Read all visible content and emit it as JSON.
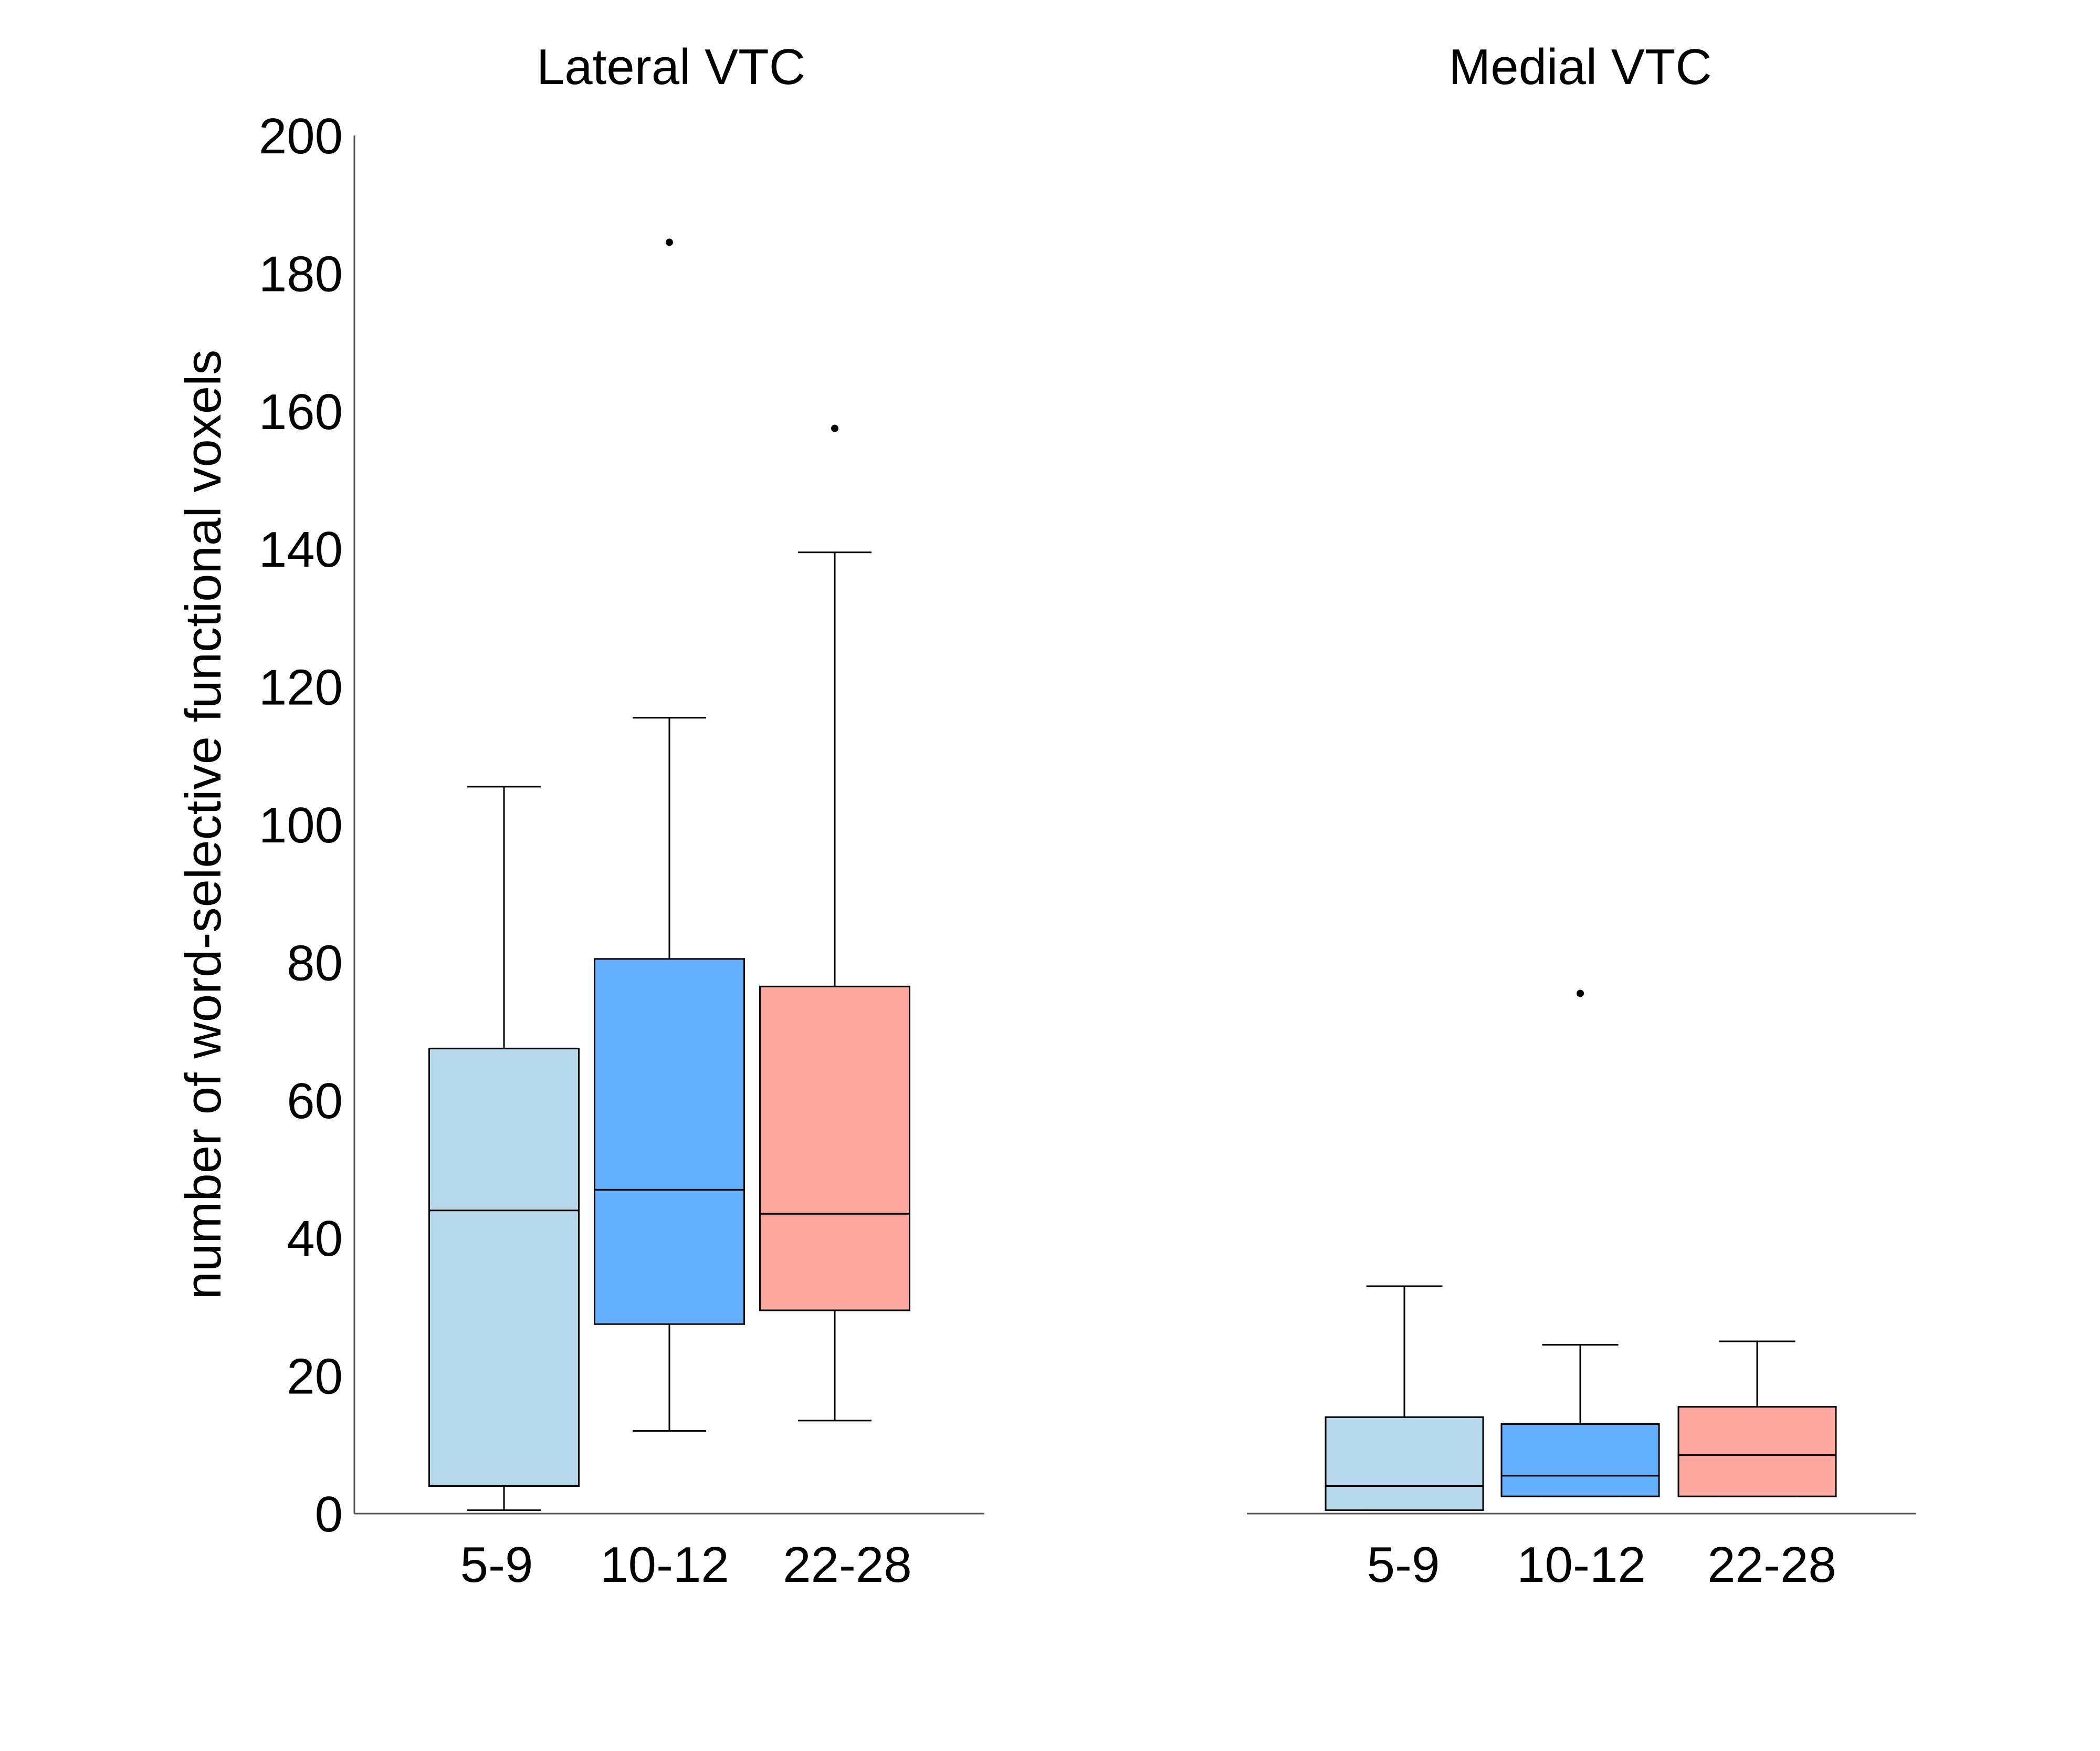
{
  "chart_data": [
    {
      "type": "box",
      "title": "Lateral VTC",
      "ylabel": "number of word-selective functional voxels",
      "xlabel": "",
      "ylim": [
        0,
        200
      ],
      "yticks": [
        0,
        20,
        40,
        60,
        80,
        100,
        120,
        140,
        160,
        180,
        200
      ],
      "y_axis_shown": true,
      "grid": false,
      "categories": [
        "5-9",
        "10-12",
        "22-28"
      ],
      "colors": [
        "#b4d8ea",
        "#63b1fe",
        "#fca89e"
      ],
      "boxes": [
        {
          "category": "5-9",
          "whisker_low": 0.5,
          "q1": 4,
          "median": 44,
          "q3": 67.5,
          "whisker_high": 105.5,
          "outliers": []
        },
        {
          "category": "10-12",
          "whisker_low": 12,
          "q1": 27.5,
          "median": 47,
          "q3": 80.5,
          "whisker_high": 115.5,
          "outliers": [
            184.5
          ]
        },
        {
          "category": "22-28",
          "whisker_low": 13.5,
          "q1": 29.5,
          "median": 43.5,
          "q3": 76.5,
          "whisker_high": 139.5,
          "outliers": [
            157.5
          ]
        }
      ]
    },
    {
      "type": "box",
      "title": "Medial VTC",
      "xlabel": "",
      "ylim": [
        0,
        200
      ],
      "y_axis_shown": false,
      "grid": false,
      "categories": [
        "5-9",
        "10-12",
        "22-28"
      ],
      "colors": [
        "#b4d8ea",
        "#63b1fe",
        "#fca89e"
      ],
      "boxes": [
        {
          "category": "5-9",
          "whisker_low": 0.5,
          "q1": 0.5,
          "median": 4,
          "q3": 14,
          "whisker_high": 33,
          "outliers": []
        },
        {
          "category": "10-12",
          "whisker_low": 2.5,
          "q1": 2.5,
          "median": 5.5,
          "q3": 13,
          "whisker_high": 24.5,
          "outliers": [
            75.5
          ]
        },
        {
          "category": "22-28",
          "whisker_low": 2.5,
          "q1": 2.5,
          "median": 8.5,
          "q3": 15.5,
          "whisker_high": 25,
          "outliers": []
        }
      ]
    }
  ]
}
